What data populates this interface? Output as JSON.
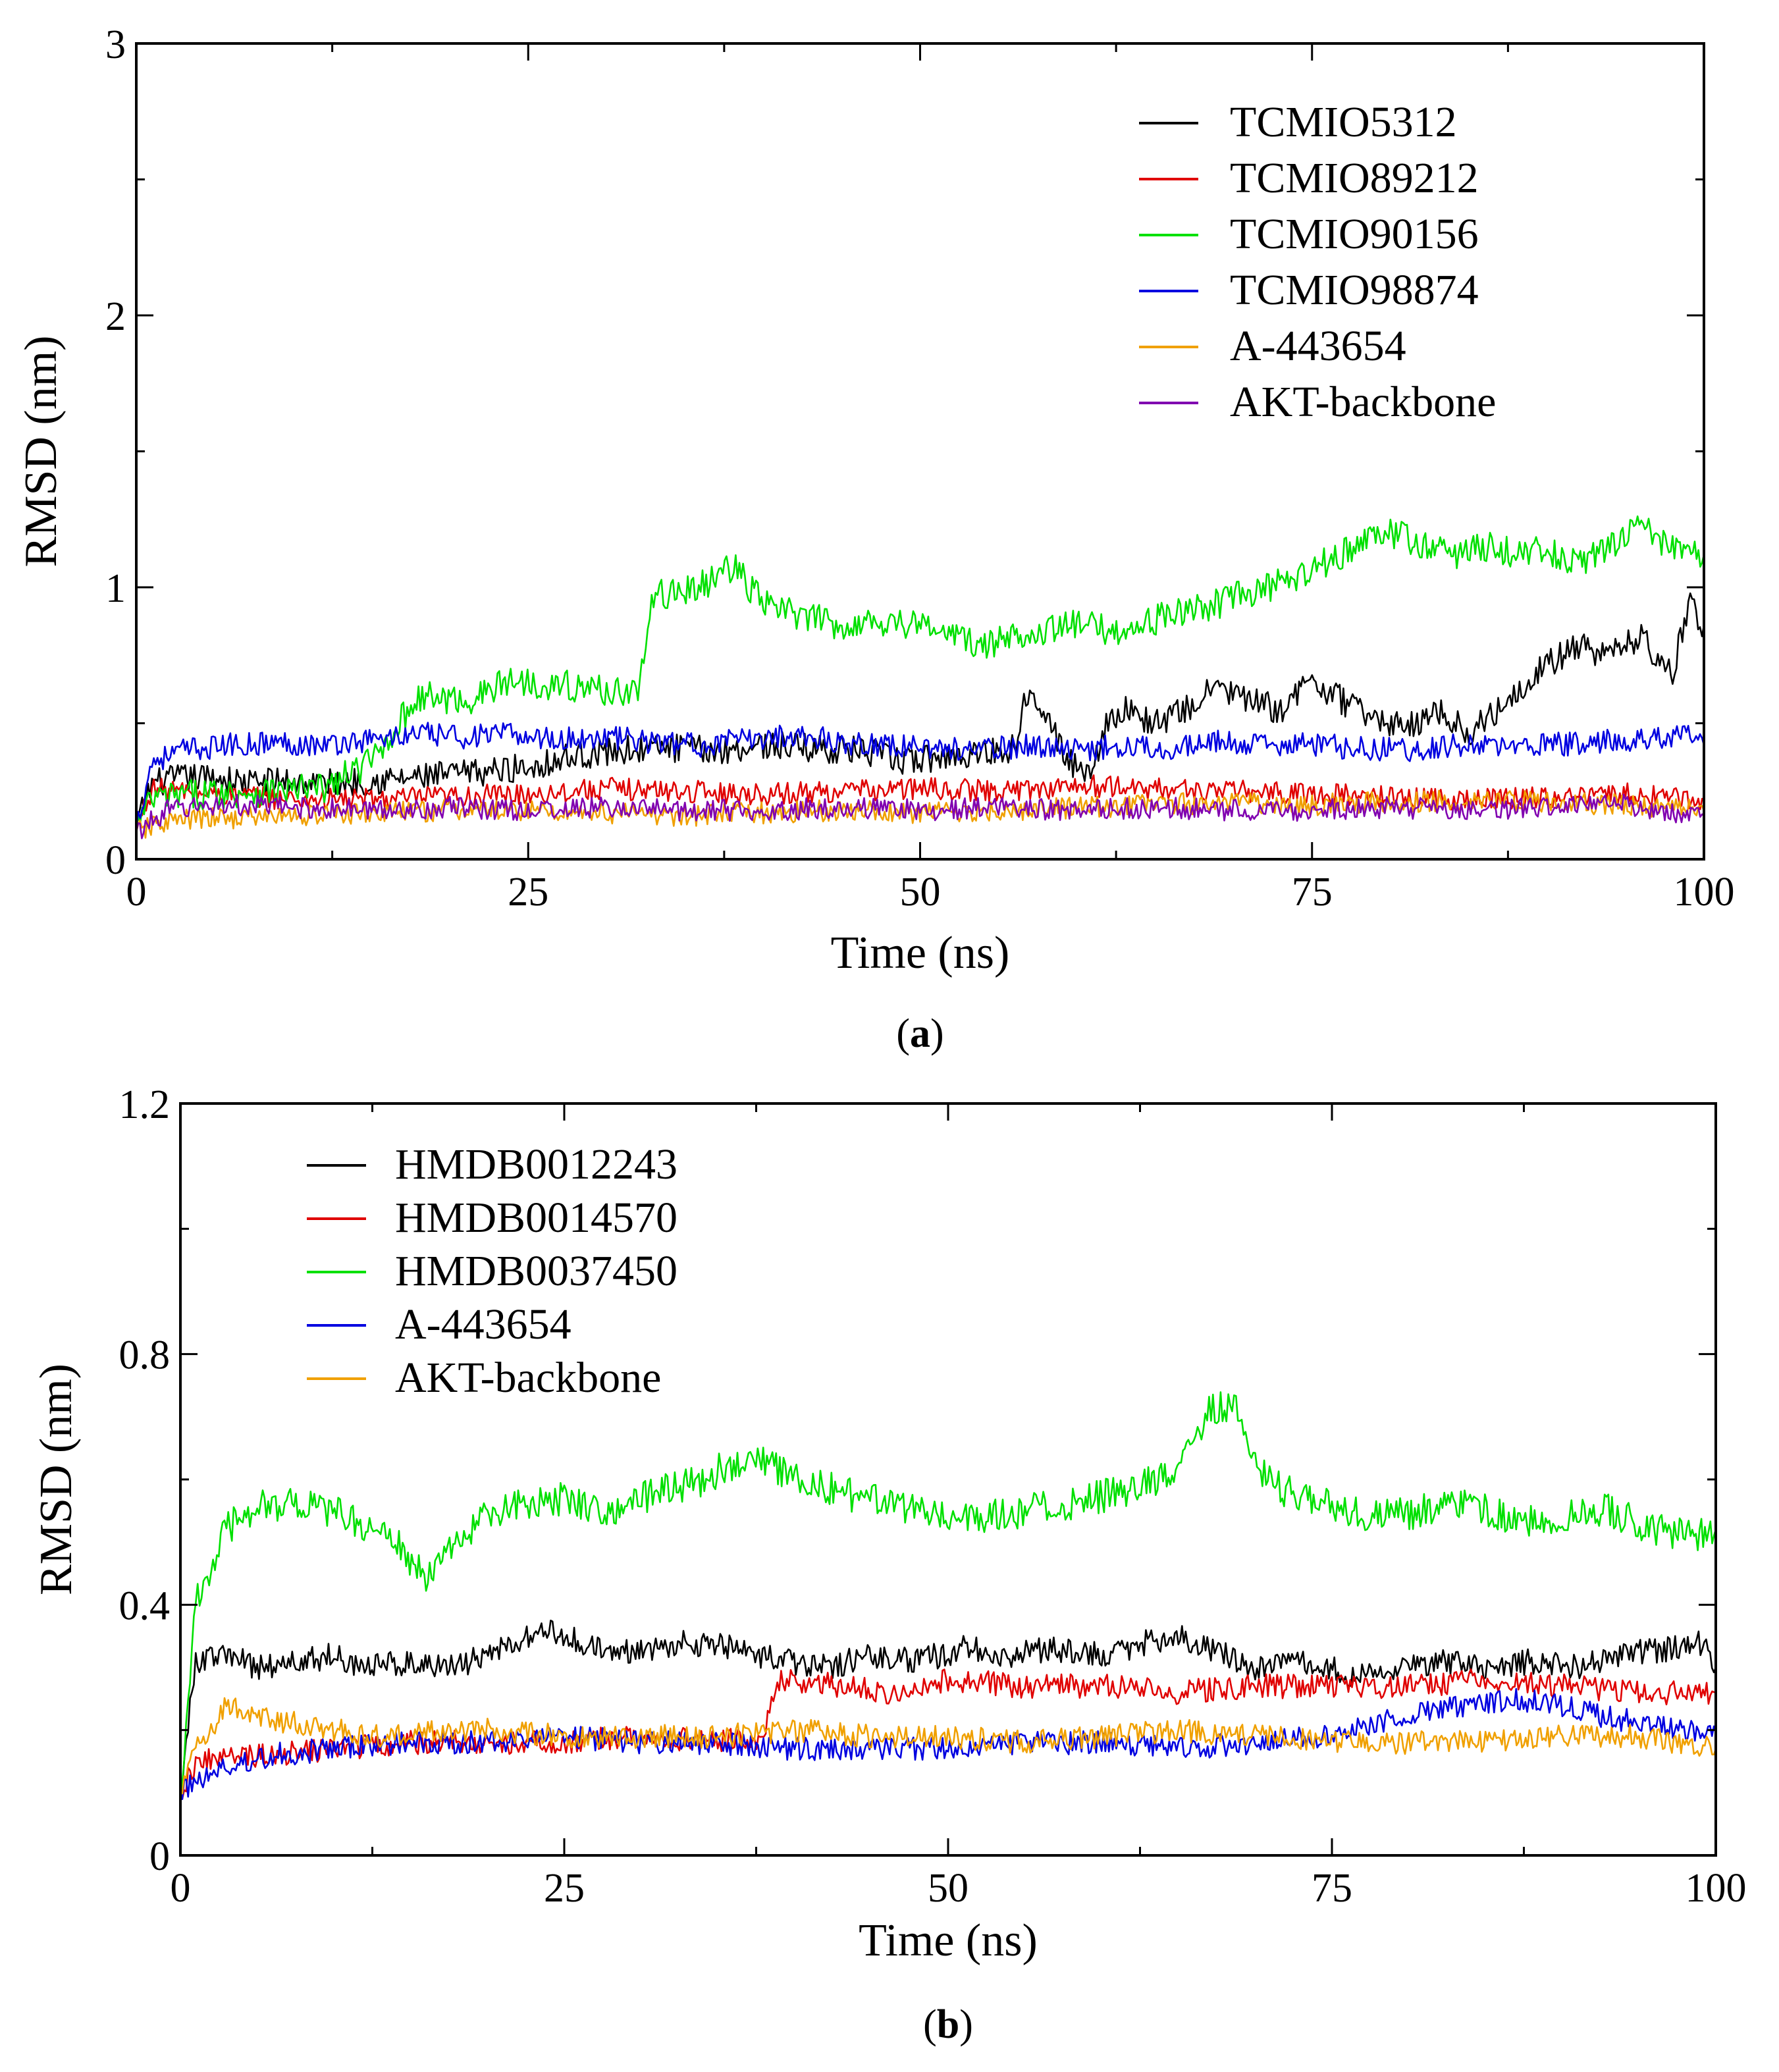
{
  "chart_data": [
    {
      "type": "line",
      "panel": "a",
      "caption_label": "a",
      "title": "",
      "xlabel": "Time (ns)",
      "ylabel": "RMSD (nm)",
      "xlim": [
        0,
        100
      ],
      "ylim": [
        0,
        3
      ],
      "xticks": [
        "0",
        "25",
        "50",
        "75",
        "100"
      ],
      "yticks": [
        "0",
        "1",
        "2",
        "3"
      ],
      "grid": false,
      "legend_position": "top-right",
      "series": [
        {
          "name": "TCMIO5312",
          "color": "#000000",
          "x": [
            0,
            1,
            3,
            5,
            7,
            9,
            12,
            15,
            18,
            22,
            25,
            28,
            31,
            34,
            37,
            40,
            43,
            46,
            49,
            52,
            55,
            56,
            57,
            58,
            59,
            60,
            61,
            62,
            63,
            65,
            67,
            69,
            71,
            73,
            75,
            77,
            79,
            81,
            83,
            85,
            86,
            87,
            88,
            90,
            92,
            94,
            96,
            98,
            99,
            100
          ],
          "values": [
            0.12,
            0.28,
            0.3,
            0.3,
            0.28,
            0.29,
            0.28,
            0.29,
            0.3,
            0.32,
            0.34,
            0.38,
            0.4,
            0.41,
            0.4,
            0.42,
            0.41,
            0.4,
            0.36,
            0.38,
            0.4,
            0.41,
            0.65,
            0.55,
            0.4,
            0.33,
            0.34,
            0.52,
            0.55,
            0.5,
            0.55,
            0.64,
            0.58,
            0.55,
            0.66,
            0.58,
            0.52,
            0.48,
            0.55,
            0.46,
            0.52,
            0.55,
            0.62,
            0.72,
            0.78,
            0.75,
            0.82,
            0.68,
            0.94,
            0.86
          ]
        },
        {
          "name": "TCMIO89212",
          "color": "#e00000",
          "x": [
            0,
            1,
            5,
            10,
            15,
            20,
            25,
            30,
            35,
            40,
            45,
            50,
            55,
            60,
            65,
            70,
            75,
            80,
            85,
            90,
            95,
            100
          ],
          "values": [
            0.12,
            0.26,
            0.24,
            0.22,
            0.22,
            0.23,
            0.24,
            0.26,
            0.25,
            0.24,
            0.25,
            0.26,
            0.25,
            0.27,
            0.26,
            0.25,
            0.24,
            0.23,
            0.22,
            0.23,
            0.24,
            0.22
          ]
        },
        {
          "name": "TCMIO90156",
          "color": "#00e000",
          "x": [
            0,
            1,
            4,
            8,
            12,
            15,
            18,
            21,
            24,
            27,
            30,
            32,
            33,
            34,
            36,
            38,
            40,
            42,
            45,
            48,
            51,
            54,
            57,
            60,
            63,
            66,
            69,
            72,
            74,
            76,
            78,
            80,
            82,
            84,
            86,
            88,
            90,
            92,
            94,
            96,
            98,
            100
          ],
          "values": [
            0.12,
            0.22,
            0.24,
            0.25,
            0.26,
            0.36,
            0.6,
            0.58,
            0.66,
            0.64,
            0.62,
            0.62,
            0.96,
            0.98,
            1.0,
            1.08,
            0.94,
            0.9,
            0.86,
            0.88,
            0.85,
            0.78,
            0.84,
            0.86,
            0.84,
            0.9,
            0.94,
            1.0,
            1.02,
            1.1,
            1.16,
            1.2,
            1.16,
            1.12,
            1.15,
            1.12,
            1.14,
            1.08,
            1.16,
            1.22,
            1.14,
            1.12
          ]
        },
        {
          "name": "TCMIO98874",
          "color": "#0000e0",
          "x": [
            0,
            1,
            3,
            6,
            9,
            12,
            15,
            18,
            21,
            24,
            27,
            30,
            33,
            36,
            39,
            42,
            45,
            48,
            51,
            54,
            57,
            60,
            63,
            66,
            69,
            72,
            75,
            78,
            81,
            84,
            87,
            90,
            93,
            96,
            99,
            100
          ],
          "values": [
            0.12,
            0.36,
            0.4,
            0.42,
            0.43,
            0.42,
            0.44,
            0.46,
            0.45,
            0.46,
            0.44,
            0.45,
            0.43,
            0.42,
            0.44,
            0.46,
            0.43,
            0.42,
            0.41,
            0.4,
            0.42,
            0.4,
            0.42,
            0.41,
            0.43,
            0.42,
            0.42,
            0.41,
            0.4,
            0.42,
            0.41,
            0.42,
            0.43,
            0.44,
            0.46,
            0.42
          ]
        },
        {
          "name": "A-443654",
          "color": "#f0a000",
          "x": [
            0,
            2,
            5,
            10,
            15,
            20,
            25,
            30,
            35,
            40,
            45,
            50,
            55,
            60,
            65,
            70,
            75,
            80,
            85,
            90,
            95,
            100
          ],
          "values": [
            0.1,
            0.14,
            0.15,
            0.16,
            0.17,
            0.18,
            0.18,
            0.17,
            0.16,
            0.17,
            0.18,
            0.17,
            0.18,
            0.19,
            0.2,
            0.21,
            0.2,
            0.21,
            0.22,
            0.21,
            0.2,
            0.18
          ]
        },
        {
          "name": "AKT-backbone",
          "color": "#8000b0",
          "x": [
            0,
            2,
            5,
            10,
            15,
            20,
            25,
            30,
            35,
            40,
            45,
            50,
            55,
            60,
            65,
            70,
            75,
            80,
            85,
            90,
            95,
            100
          ],
          "values": [
            0.1,
            0.18,
            0.2,
            0.19,
            0.18,
            0.19,
            0.18,
            0.19,
            0.18,
            0.18,
            0.19,
            0.18,
            0.19,
            0.18,
            0.19,
            0.18,
            0.18,
            0.19,
            0.18,
            0.19,
            0.2,
            0.16
          ]
        }
      ]
    },
    {
      "type": "line",
      "panel": "b",
      "caption_label": "b",
      "title": "",
      "xlabel": "Time (ns)",
      "ylabel": "RMSD (nm)",
      "xlim": [
        0,
        100
      ],
      "ylim": [
        0,
        1.2
      ],
      "xticks": [
        "0",
        "25",
        "50",
        "75",
        "100"
      ],
      "yticks": [
        "0",
        "0.4",
        "0.8",
        "1.2"
      ],
      "grid": false,
      "legend_position": "top-left",
      "series": [
        {
          "name": "HMDB0012243",
          "color": "#000000",
          "x": [
            0,
            1,
            3,
            5,
            8,
            10,
            12,
            15,
            18,
            21,
            24,
            26,
            28,
            30,
            33,
            36,
            39,
            42,
            45,
            48,
            51,
            54,
            57,
            60,
            63,
            65,
            67,
            70,
            73,
            76,
            79,
            82,
            85,
            88,
            91,
            94,
            97,
            99,
            100
          ],
          "values": [
            0.1,
            0.31,
            0.32,
            0.3,
            0.31,
            0.32,
            0.3,
            0.31,
            0.3,
            0.33,
            0.36,
            0.34,
            0.32,
            0.33,
            0.34,
            0.33,
            0.31,
            0.3,
            0.32,
            0.31,
            0.33,
            0.32,
            0.33,
            0.32,
            0.34,
            0.35,
            0.33,
            0.3,
            0.31,
            0.29,
            0.3,
            0.31,
            0.3,
            0.31,
            0.3,
            0.32,
            0.33,
            0.34,
            0.3
          ]
        },
        {
          "name": "HMDB0014570",
          "color": "#e00000",
          "x": [
            0,
            1,
            5,
            10,
            15,
            20,
            25,
            30,
            35,
            38,
            39,
            40,
            43,
            46,
            50,
            55,
            60,
            65,
            70,
            75,
            80,
            85,
            90,
            95,
            100
          ],
          "values": [
            0.1,
            0.15,
            0.16,
            0.17,
            0.18,
            0.18,
            0.18,
            0.19,
            0.18,
            0.19,
            0.28,
            0.28,
            0.27,
            0.26,
            0.28,
            0.27,
            0.27,
            0.26,
            0.27,
            0.27,
            0.27,
            0.28,
            0.27,
            0.26,
            0.26
          ]
        },
        {
          "name": "HMDB0037450",
          "color": "#00e000",
          "x": [
            0,
            1,
            2,
            3,
            5,
            8,
            11,
            14,
            16,
            18,
            20,
            22,
            25,
            28,
            31,
            34,
            37,
            40,
            43,
            46,
            49,
            52,
            55,
            58,
            61,
            64,
            66,
            67,
            68,
            69,
            70,
            72,
            75,
            78,
            81,
            84,
            87,
            90,
            93,
            96,
            98,
            100
          ],
          "values": [
            0.1,
            0.4,
            0.46,
            0.52,
            0.56,
            0.56,
            0.54,
            0.5,
            0.44,
            0.5,
            0.54,
            0.56,
            0.57,
            0.55,
            0.58,
            0.6,
            0.64,
            0.6,
            0.58,
            0.56,
            0.55,
            0.54,
            0.55,
            0.56,
            0.58,
            0.6,
            0.66,
            0.72,
            0.71,
            0.71,
            0.62,
            0.58,
            0.56,
            0.54,
            0.55,
            0.56,
            0.53,
            0.54,
            0.55,
            0.52,
            0.51,
            0.52
          ]
        },
        {
          "name": "A-443654",
          "color": "#0000e0",
          "x": [
            0,
            1,
            3,
            6,
            10,
            15,
            20,
            25,
            30,
            35,
            40,
            45,
            50,
            55,
            60,
            65,
            70,
            75,
            78,
            81,
            84,
            87,
            90,
            93,
            96,
            99,
            100
          ],
          "values": [
            0.1,
            0.12,
            0.14,
            0.16,
            0.17,
            0.18,
            0.18,
            0.19,
            0.18,
            0.18,
            0.17,
            0.17,
            0.17,
            0.18,
            0.18,
            0.17,
            0.18,
            0.19,
            0.21,
            0.23,
            0.24,
            0.25,
            0.24,
            0.22,
            0.21,
            0.2,
            0.2
          ]
        },
        {
          "name": "AKT-backbone",
          "color": "#f0a000",
          "x": [
            0,
            1,
            2,
            3,
            5,
            8,
            10,
            13,
            16,
            20,
            25,
            30,
            35,
            40,
            45,
            50,
            55,
            60,
            65,
            70,
            75,
            80,
            85,
            90,
            95,
            100
          ],
          "values": [
            0.1,
            0.18,
            0.2,
            0.24,
            0.22,
            0.21,
            0.2,
            0.19,
            0.2,
            0.2,
            0.19,
            0.19,
            0.19,
            0.2,
            0.19,
            0.19,
            0.18,
            0.19,
            0.2,
            0.19,
            0.18,
            0.18,
            0.18,
            0.19,
            0.19,
            0.17
          ]
        }
      ]
    }
  ]
}
